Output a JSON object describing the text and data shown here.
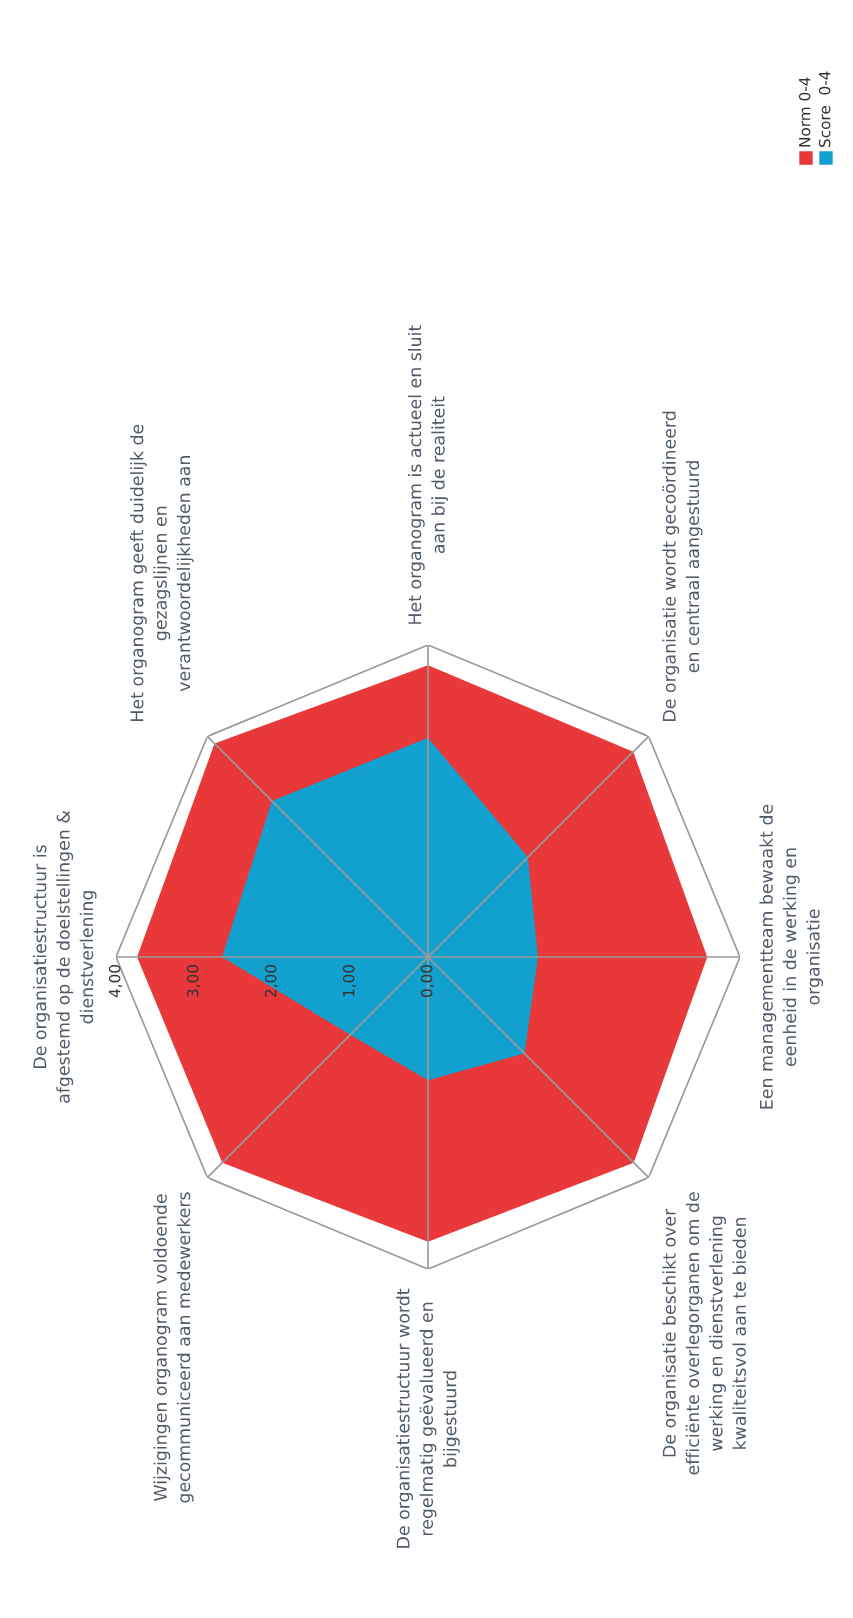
{
  "chart_data": {
    "type": "radar",
    "categories": [
      "De organisatiestructuur is\nafgestemd op de doelstellingen &\ndienstverlening",
      "Het organogram geeft duidelijk de\ngezagslijnen en\nverantwoordelijkheden aan",
      "Het organogram is actueel en sluit\naan bij de realiteit",
      "De organisatie wordt gecoördineerd\nen centraal aangestuurd",
      "Een managementteam bewaakt de\neenheid in de werking en\norganisatie",
      "De organisatie beschikt over\nefficiënte overlegorganen om de\nwerking en dienstverlening\nkwaliteitsvol aan te bieden",
      "De organisatiestructuur wordt\nregelmatig geëvalueerd en\nbijgestuurd",
      "Wijzigingen organogram voldoende\ngecommuniceerd aan medewerkers"
    ],
    "series": [
      {
        "name": "Norm 0-4",
        "color": "#e8383a",
        "values": [
          3.73,
          3.87,
          3.74,
          3.72,
          3.58,
          3.73,
          3.65,
          3.73
        ]
      },
      {
        "name": "Score  0-4",
        "color": "#12a0cf",
        "values": [
          2.64,
          2.83,
          2.81,
          1.81,
          1.41,
          1.75,
          1.58,
          1.41
        ]
      }
    ],
    "ylim": [
      0,
      4
    ],
    "yticks": [
      {
        "value": 0,
        "label": "0,00"
      },
      {
        "value": 1,
        "label": "1,00"
      },
      {
        "value": 2,
        "label": "2,00"
      },
      {
        "value": 3,
        "label": "3,00"
      },
      {
        "value": 4,
        "label": "4,00"
      }
    ],
    "grid": true,
    "legend": "top right"
  }
}
